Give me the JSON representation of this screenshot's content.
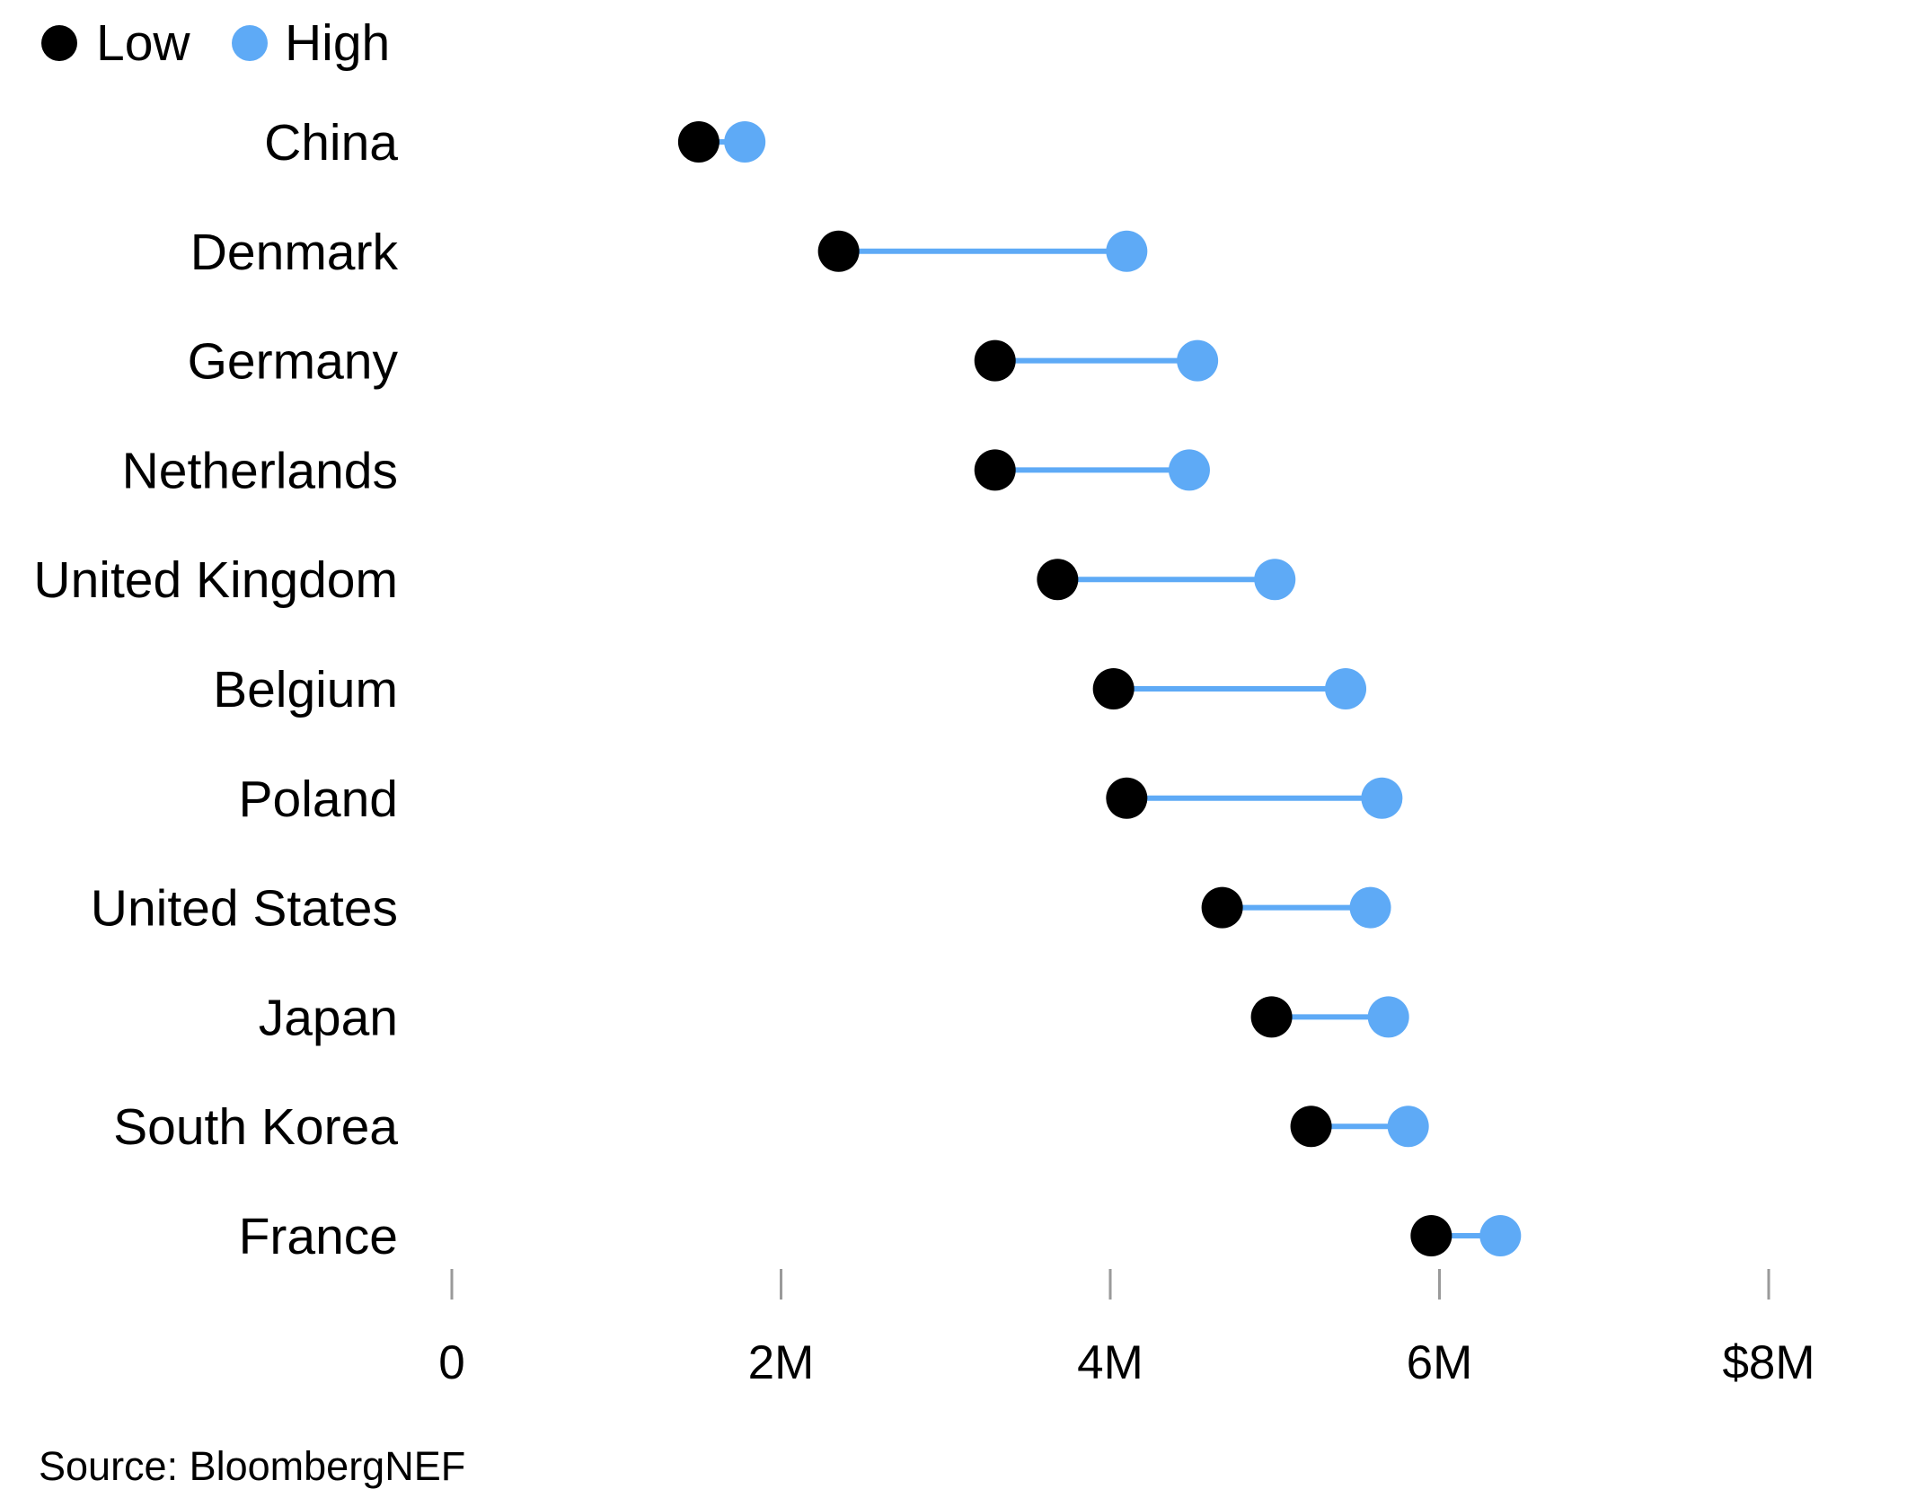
{
  "colors": {
    "low": "#000000",
    "high": "#5eaaf6",
    "tick": "#9a9a9a"
  },
  "legend": {
    "items": [
      {
        "label": "Low",
        "color": "#000000"
      },
      {
        "label": "High",
        "color": "#5eaaf6"
      }
    ]
  },
  "chart_data": {
    "type": "scatter",
    "subtype": "dumbbell",
    "title": "",
    "xlabel": "",
    "ylabel": "",
    "xlim": [
      0,
      8
    ],
    "x_unit": "millions of dollars",
    "ticks": [
      {
        "value": 0,
        "label": "0"
      },
      {
        "value": 2,
        "label": "2M"
      },
      {
        "value": 4,
        "label": "4M"
      },
      {
        "value": 6,
        "label": "6M"
      },
      {
        "value": 8,
        "label": "$8M"
      }
    ],
    "categories": [
      "China",
      "Denmark",
      "Germany",
      "Netherlands",
      "United Kingdom",
      "Belgium",
      "Poland",
      "United States",
      "Japan",
      "South Korea",
      "France"
    ],
    "series": [
      {
        "name": "Low",
        "values": [
          1.5,
          2.35,
          3.3,
          3.3,
          3.68,
          4.02,
          4.1,
          4.68,
          4.98,
          5.22,
          5.95
        ]
      },
      {
        "name": "High",
        "values": [
          1.78,
          4.1,
          4.53,
          4.48,
          5.0,
          5.43,
          5.65,
          5.58,
          5.69,
          5.81,
          6.37
        ]
      }
    ],
    "grid": false,
    "legend_position": "top-left"
  },
  "footer": {
    "source": "Source: BloombergNEF"
  }
}
